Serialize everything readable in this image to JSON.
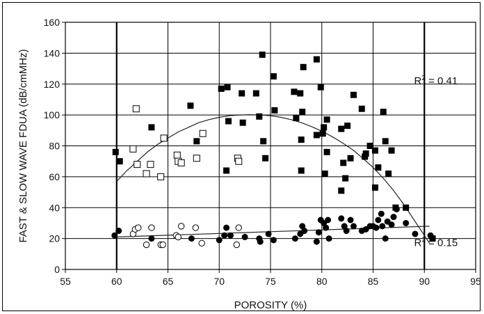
{
  "chart_data": {
    "type": "scatter",
    "title": "",
    "xlabel": "POROSITY (%)",
    "ylabel": "FAST & SLOW WAVE FDUA (dB/cmMHz)",
    "xlim": [
      55,
      95
    ],
    "ylim": [
      0,
      160
    ],
    "xticks": [
      55,
      60,
      65,
      70,
      75,
      80,
      85,
      90,
      95
    ],
    "yticks": [
      0,
      20,
      40,
      60,
      80,
      100,
      120,
      140,
      160
    ],
    "grid": true,
    "legend": "none",
    "annotations": [
      {
        "base": "R",
        "sup": "2",
        "text": " = 0.41",
        "x": 89,
        "y": 120
      },
      {
        "base": "R",
        "sup": "2",
        "text": " = 0.15",
        "x": 89,
        "y": 15
      }
    ],
    "series": [
      {
        "marker": "filled-square",
        "points": [
          [
            59.9,
            76
          ],
          [
            60.3,
            70
          ],
          [
            63.4,
            92
          ],
          [
            67.2,
            106
          ],
          [
            67.8,
            83
          ],
          [
            70.2,
            117
          ],
          [
            70.7,
            64
          ],
          [
            70.8,
            118
          ],
          [
            70.9,
            96
          ],
          [
            72.2,
            114
          ],
          [
            72.3,
            95
          ],
          [
            73.6,
            114
          ],
          [
            73.9,
            99
          ],
          [
            74.2,
            139
          ],
          [
            74.5,
            72
          ],
          [
            74.3,
            83
          ],
          [
            75.3,
            125
          ],
          [
            75.4,
            103
          ],
          [
            77.3,
            115
          ],
          [
            77.5,
            98
          ],
          [
            77.9,
            114
          ],
          [
            78.0,
            84
          ],
          [
            78.0,
            64
          ],
          [
            78.1,
            102
          ],
          [
            78.2,
            131
          ],
          [
            79.5,
            136
          ],
          [
            79.5,
            87
          ],
          [
            79.9,
            118
          ],
          [
            80.1,
            88
          ],
          [
            80.2,
            92
          ],
          [
            80.3,
            62
          ],
          [
            80.5,
            97
          ],
          [
            80.5,
            76
          ],
          [
            81.9,
            91
          ],
          [
            81.9,
            51
          ],
          [
            82.1,
            69
          ],
          [
            82.3,
            59
          ],
          [
            82.5,
            93
          ],
          [
            82.8,
            72
          ],
          [
            83.1,
            113
          ],
          [
            83.9,
            104
          ],
          [
            84.2,
            73
          ],
          [
            84.3,
            75
          ],
          [
            84.7,
            80
          ],
          [
            85.2,
            53
          ],
          [
            85.2,
            77
          ],
          [
            85.5,
            66
          ],
          [
            86.0,
            102
          ],
          [
            86.2,
            83
          ],
          [
            86.5,
            62
          ],
          [
            86.8,
            77
          ],
          [
            87.2,
            40
          ],
          [
            88.2,
            40
          ],
          [
            90.8,
            20
          ]
        ]
      },
      {
        "marker": "open-square",
        "points": [
          [
            61.6,
            78
          ],
          [
            61.9,
            104
          ],
          [
            62.0,
            68
          ],
          [
            62.9,
            62
          ],
          [
            63.3,
            68
          ],
          [
            64.3,
            60
          ],
          [
            64.6,
            85
          ],
          [
            65.9,
            74
          ],
          [
            66.0,
            70
          ],
          [
            66.3,
            69
          ],
          [
            67.8,
            72
          ],
          [
            68.4,
            88
          ],
          [
            71.8,
            72
          ],
          [
            71.9,
            70
          ]
        ]
      },
      {
        "marker": "filled-circle",
        "points": [
          [
            59.8,
            22
          ],
          [
            60.2,
            25
          ],
          [
            63.4,
            20
          ],
          [
            67.3,
            20
          ],
          [
            70.0,
            19
          ],
          [
            70.5,
            22
          ],
          [
            70.7,
            27
          ],
          [
            71.1,
            22
          ],
          [
            72.5,
            21
          ],
          [
            73.9,
            20
          ],
          [
            74.0,
            18
          ],
          [
            74.8,
            23
          ],
          [
            75.3,
            19
          ],
          [
            77.4,
            20
          ],
          [
            77.9,
            23
          ],
          [
            78.1,
            28
          ],
          [
            78.3,
            25
          ],
          [
            79.5,
            18
          ],
          [
            79.7,
            24
          ],
          [
            79.9,
            32
          ],
          [
            80.2,
            30
          ],
          [
            80.4,
            27
          ],
          [
            80.6,
            32
          ],
          [
            80.7,
            20
          ],
          [
            81.9,
            33
          ],
          [
            82.2,
            28
          ],
          [
            82.4,
            25
          ],
          [
            82.8,
            32
          ],
          [
            83.1,
            28
          ],
          [
            83.9,
            25
          ],
          [
            84.3,
            26
          ],
          [
            84.7,
            28
          ],
          [
            85.0,
            28
          ],
          [
            85.3,
            27
          ],
          [
            85.5,
            32
          ],
          [
            85.8,
            36
          ],
          [
            85.9,
            28
          ],
          [
            86.2,
            20
          ],
          [
            86.4,
            31
          ],
          [
            86.8,
            29
          ],
          [
            87.0,
            34
          ],
          [
            87.3,
            39
          ],
          [
            88.2,
            30
          ],
          [
            89.1,
            23
          ],
          [
            90.6,
            22
          ]
        ]
      },
      {
        "marker": "open-circle",
        "points": [
          [
            61.6,
            23
          ],
          [
            61.8,
            26
          ],
          [
            62.1,
            27
          ],
          [
            62.9,
            16
          ],
          [
            63.4,
            27
          ],
          [
            64.3,
            16
          ],
          [
            64.5,
            16
          ],
          [
            65.8,
            22
          ],
          [
            66.0,
            21
          ],
          [
            66.3,
            28
          ],
          [
            67.7,
            27
          ],
          [
            68.3,
            17
          ],
          [
            71.7,
            16
          ],
          [
            71.9,
            27
          ]
        ]
      }
    ],
    "fits": [
      {
        "type": "quadratic",
        "points": [
          [
            60,
            57
          ],
          [
            61,
            64
          ],
          [
            62,
            70
          ],
          [
            63,
            76
          ],
          [
            64,
            81
          ],
          [
            65,
            85
          ],
          [
            66,
            89
          ],
          [
            67,
            92
          ],
          [
            68,
            95
          ],
          [
            69,
            97
          ],
          [
            70,
            98.5
          ],
          [
            71,
            99.5
          ],
          [
            72,
            100
          ],
          [
            73,
            100.2
          ],
          [
            74,
            100
          ],
          [
            75,
            99.5
          ],
          [
            76,
            98.5
          ],
          [
            77,
            97
          ],
          [
            78,
            95
          ],
          [
            79,
            92.5
          ],
          [
            80,
            89.5
          ],
          [
            81,
            86
          ],
          [
            82,
            82
          ],
          [
            83,
            77.5
          ],
          [
            84,
            72
          ],
          [
            85,
            66
          ],
          [
            86,
            59
          ],
          [
            87,
            51
          ],
          [
            88,
            42
          ],
          [
            89,
            32
          ],
          [
            90,
            22
          ],
          [
            90.5,
            17
          ]
        ]
      },
      {
        "type": "linear",
        "points": [
          [
            60,
            21
          ],
          [
            90.5,
            28
          ]
        ]
      }
    ]
  }
}
